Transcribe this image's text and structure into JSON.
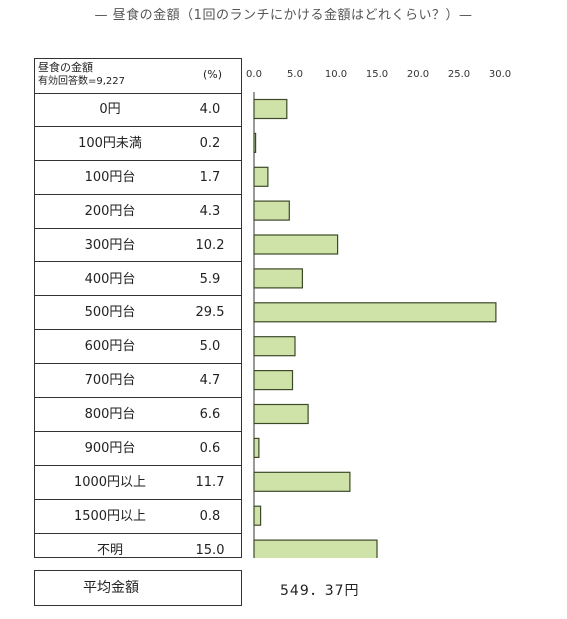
{
  "chart_data": {
    "type": "bar",
    "orientation": "horizontal",
    "title": "— 昼食の金額（1回のランチにかける金額はどれくらい？）—",
    "table_header": {
      "label": "昼食の金額",
      "respondents": "有効回答数=9,227",
      "unit": "(%)"
    },
    "categories": [
      "0円",
      "100円未満",
      "100円台",
      "200円台",
      "300円台",
      "400円台",
      "500円台",
      "600円台",
      "700円台",
      "800円台",
      "900円台",
      "1000円以上",
      "1500円以上",
      "不明"
    ],
    "value_labels": [
      "4.0",
      "0.2",
      "1.7",
      "4.3",
      "10.2",
      "5.9",
      "29.5",
      "5.0",
      "4.7",
      "6.6",
      "0.6",
      "11.7",
      "0.8",
      "15.0"
    ],
    "values": [
      4.0,
      0.2,
      1.7,
      4.3,
      10.2,
      5.9,
      29.5,
      5.0,
      4.7,
      6.6,
      0.6,
      11.7,
      0.8,
      15.0
    ],
    "x_ticks": [
      "0.0",
      "5.0",
      "10.0",
      "15.0",
      "20.0",
      "25.0",
      "30.0"
    ],
    "xlim": [
      0,
      30
    ],
    "bar_color": "#cfe3a8",
    "bar_edge_color": "#3c4a28",
    "grid": false
  },
  "summary": {
    "label": "平均金額",
    "value": "549．37円"
  }
}
